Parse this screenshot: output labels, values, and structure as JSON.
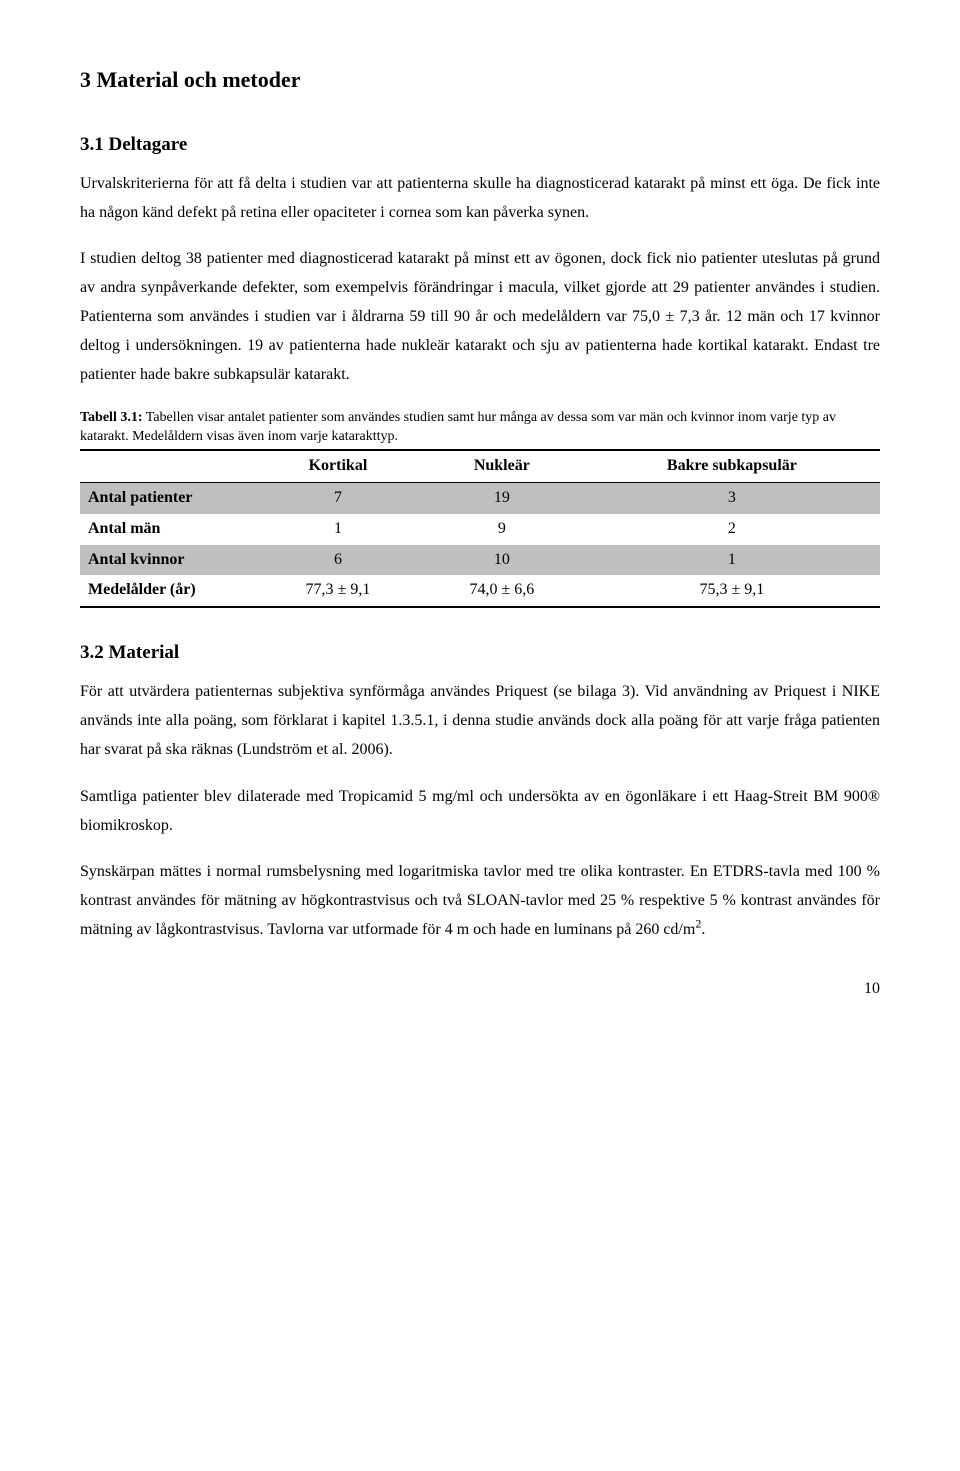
{
  "h1": "3 Material och metoder",
  "h2_1": "3.1 Deltagare",
  "p1": "Urvalskriterierna för att få delta i studien var att patienterna skulle ha diagnosticerad katarakt på minst ett öga. De fick inte ha någon känd defekt på retina eller opaciteter i cornea som kan påverka synen.",
  "p2": "I studien deltog 38 patienter med diagnosticerad katarakt på minst ett av ögonen, dock fick nio patienter uteslutas på grund av andra synpåverkande defekter, som exempelvis förändringar i macula, vilket gjorde att 29 patienter användes i studien. Patienterna som användes i studien var i åldrarna 59 till 90 år och medelåldern var 75,0 ± 7,3 år. 12 män och 17 kvinnor deltog i undersökningen. 19 av patienterna hade nukleär katarakt och sju av patienterna hade kortikal katarakt. Endast tre patienter hade bakre subkapsulär katarakt.",
  "table_caption_bold": "Tabell 3.1:",
  "table_caption_rest": " Tabellen visar antalet patienter som användes studien samt hur många av dessa som var män och kvinnor inom varje typ av katarakt. Medelåldern visas även inom varje katarakttyp.",
  "table": {
    "columns": [
      "",
      "Kortikal",
      "Nukleär",
      "Bakre subkapsulär"
    ],
    "rows": [
      {
        "label": "Antal patienter",
        "cells": [
          "7",
          "19",
          "3"
        ],
        "shaded": true
      },
      {
        "label": "Antal män",
        "cells": [
          "1",
          "9",
          "2"
        ],
        "shaded": false
      },
      {
        "label": "Antal kvinnor",
        "cells": [
          "6",
          "10",
          "1"
        ],
        "shaded": true
      },
      {
        "label": "Medelålder (år)",
        "cells": [
          "77,3 ± 9,1",
          "74,0 ± 6,6",
          "75,3 ± 9,1"
        ],
        "shaded": false
      }
    ]
  },
  "h2_2": "3.2 Material",
  "p3": "För att utvärdera patienternas subjektiva synförmåga användes Priquest (se bilaga 3). Vid användning av Priquest i NIKE används inte alla poäng, som förklarat i kapitel 1.3.5.1, i denna studie används dock alla poäng för att varje fråga patienten har svarat på ska räknas (Lundström et al. 2006).",
  "p4": "Samtliga patienter blev dilaterade med Tropicamid 5 mg/ml och undersökta av en ögonläkare i ett Haag-Streit BM 900® biomikroskop.",
  "p5_a": "Synskärpan mättes i normal rumsbelysning med logaritmiska tavlor med tre olika kontraster. En ETDRS-tavla med 100 % kontrast användes för mätning av högkontrastvisus och två SLOAN-tavlor med 25 % respektive 5 % kontrast användes för mätning av lågkontrastvisus. Tavlorna var utformade för 4 m och hade en luminans på 260 cd/m",
  "p5_sup": "2",
  "p5_b": ".",
  "page_number": "10"
}
